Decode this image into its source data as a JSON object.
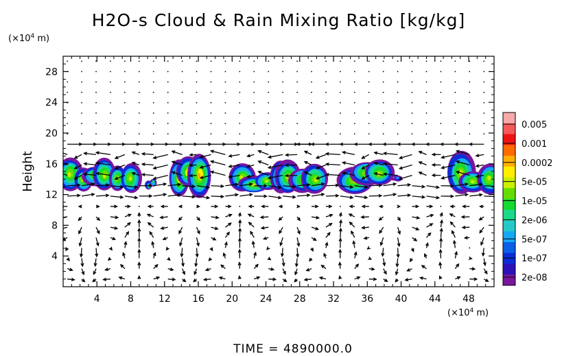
{
  "chart_data": {
    "type": "heatmap",
    "title": "H2O-s Cloud & Rain Mixing Ratio [kg/kg]",
    "y_unit": "(×10",
    "y_unit_exp": "4",
    "y_unit_tail": " m)",
    "x_unit": "(×10",
    "x_unit_exp": "4",
    "x_unit_tail": " m)",
    "ylabel": "Height",
    "xlim": [
      0,
      51
    ],
    "ylim": [
      0,
      30
    ],
    "xticks": [
      4,
      8,
      12,
      16,
      20,
      24,
      28,
      32,
      36,
      40,
      44,
      48
    ],
    "yticks": [
      4,
      8,
      12,
      16,
      20,
      24,
      28
    ],
    "colorbar": {
      "labels": [
        "0.005",
        "0.001",
        "0.0002",
        "5e-05",
        "1e-05",
        "2e-06",
        "5e-07",
        "1e-07",
        "2e-08"
      ],
      "colors": [
        "#f7a8a8",
        "#f45a5a",
        "#ee1414",
        "#ff6a00",
        "#ffb000",
        "#ffee00",
        "#c8f000",
        "#66dd00",
        "#17d92e",
        "#1bd98a",
        "#26c9c9",
        "#16a8f5",
        "#0a5fe6",
        "#0a2ed8",
        "#2d12b8",
        "#7a169e"
      ]
    },
    "cloud_regions": [
      {
        "x": [
          0,
          8.5
        ],
        "y": [
          12.5,
          16.5
        ],
        "max_level": "5e-05"
      },
      {
        "x": [
          10,
          11
        ],
        "y": [
          12.8,
          14.0
        ],
        "max_level": "1e-05"
      },
      {
        "x": [
          13,
          17
        ],
        "y": [
          11.5,
          16.8
        ],
        "max_level": "0.0002"
      },
      {
        "x": [
          20.5,
          30.5
        ],
        "y": [
          12.0,
          16.2
        ],
        "max_level": "5e-05"
      },
      {
        "x": [
          33.5,
          38.5
        ],
        "y": [
          12.3,
          16.3
        ],
        "max_level": "5e-05"
      },
      {
        "x": [
          38.8,
          40.2
        ],
        "y": [
          13.6,
          14.8
        ],
        "max_level": "2e-06"
      },
      {
        "x": [
          46,
          51
        ],
        "y": [
          11.5,
          16.8
        ],
        "max_level": "5e-05"
      }
    ],
    "wind_vectors": "upper-level easterly/westerly bands near 12-19 (x10^4 m), convective circulation cells below 12"
  },
  "footer": {
    "time_label": "TIME  =  4890000.0"
  }
}
